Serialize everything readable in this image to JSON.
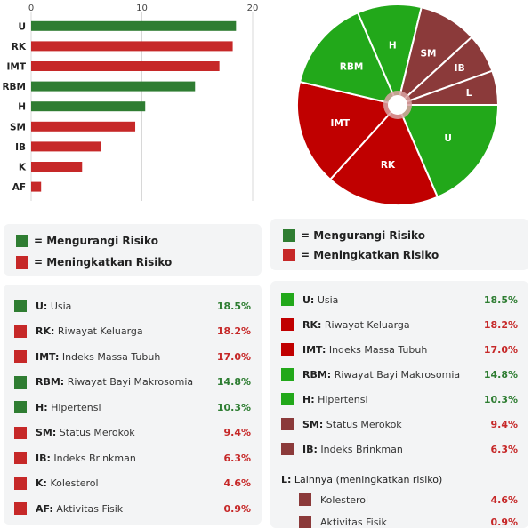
{
  "colors": {
    "reduce_dark": "#2f7d32",
    "increase_red": "#c62828",
    "reduce_bright": "#22a81a",
    "increase_deep": "#c00000",
    "other_maroon": "#8b3a3a",
    "reduce_text": "#2e7d32",
    "increase_text": "#c62828"
  },
  "chart_data": [
    {
      "type": "bar",
      "orientation": "horizontal",
      "categories": [
        "U",
        "RK",
        "IMT",
        "RBM",
        "H",
        "SM",
        "IB",
        "K",
        "AF"
      ],
      "values": [
        18.5,
        18.2,
        17.0,
        14.8,
        10.3,
        9.4,
        6.3,
        4.6,
        0.9
      ],
      "effect": [
        "reduce",
        "increase",
        "increase",
        "reduce",
        "reduce",
        "increase",
        "increase",
        "increase",
        "increase"
      ],
      "xticks": [
        "0",
        "10",
        "20"
      ],
      "xlim": [
        0,
        20
      ],
      "grid": true,
      "title": "",
      "xlabel": "",
      "ylabel": ""
    },
    {
      "type": "pie",
      "style": "donut-with-small-hole",
      "slices": [
        {
          "label": "U",
          "value": 18.5,
          "color": "bright_green"
        },
        {
          "label": "RK",
          "value": 18.2,
          "color": "deep_red"
        },
        {
          "label": "IMT",
          "value": 17.0,
          "color": "deep_red"
        },
        {
          "label": "RBM",
          "value": 14.8,
          "color": "bright_green"
        },
        {
          "label": "H",
          "value": 10.3,
          "color": "bright_green"
        },
        {
          "label": "SM",
          "value": 9.4,
          "color": "maroon"
        },
        {
          "label": "IB",
          "value": 6.3,
          "color": "maroon"
        },
        {
          "label": "L",
          "value": 5.5,
          "color": "maroon"
        }
      ]
    }
  ],
  "left_legend": [
    {
      "label": "= Mengurangi Risiko",
      "effect": "reduce"
    },
    {
      "label": "= Meningkatkan Risiko",
      "effect": "increase"
    }
  ],
  "right_legend": [
    {
      "label": "= Mengurangi Risiko",
      "effect": "reduce"
    },
    {
      "label": "= Meningkatkan Risiko",
      "effect": "increase"
    }
  ],
  "left_table": [
    {
      "abbr": "U:",
      "label": "Usia",
      "pct": "18.5%",
      "effect": "reduce"
    },
    {
      "abbr": "RK:",
      "label": "Riwayat Keluarga",
      "pct": "18.2%",
      "effect": "increase"
    },
    {
      "abbr": "IMT:",
      "label": "Indeks Massa Tubuh",
      "pct": "17.0%",
      "effect": "increase"
    },
    {
      "abbr": "RBM:",
      "label": "Riwayat Bayi Makrosomia",
      "pct": "14.8%",
      "effect": "reduce"
    },
    {
      "abbr": "H:",
      "label": "Hipertensi",
      "pct": "10.3%",
      "effect": "reduce"
    },
    {
      "abbr": "SM:",
      "label": "Status Merokok",
      "pct": "9.4%",
      "effect": "increase"
    },
    {
      "abbr": "IB:",
      "label": "Indeks Brinkman",
      "pct": "6.3%",
      "effect": "increase"
    },
    {
      "abbr": "K:",
      "label": "Kolesterol",
      "pct": "4.6%",
      "effect": "increase"
    },
    {
      "abbr": "AF:",
      "label": "Aktivitas Fisik",
      "pct": "0.9%",
      "effect": "increase"
    }
  ],
  "right_table": [
    {
      "abbr": "U:",
      "label": "Usia",
      "pct": "18.5%",
      "effect": "reduce",
      "swatch": "bright_green"
    },
    {
      "abbr": "RK:",
      "label": "Riwayat Keluarga",
      "pct": "18.2%",
      "effect": "increase",
      "swatch": "deep_red"
    },
    {
      "abbr": "IMT:",
      "label": "Indeks Massa Tubuh",
      "pct": "17.0%",
      "effect": "increase",
      "swatch": "deep_red"
    },
    {
      "abbr": "RBM:",
      "label": "Riwayat Bayi Makrosomia",
      "pct": "14.8%",
      "effect": "reduce",
      "swatch": "bright_green"
    },
    {
      "abbr": "H:",
      "label": "Hipertensi",
      "pct": "10.3%",
      "effect": "reduce",
      "swatch": "bright_green"
    },
    {
      "abbr": "SM:",
      "label": "Status Merokok",
      "pct": "9.4%",
      "effect": "increase",
      "swatch": "maroon"
    },
    {
      "abbr": "IB:",
      "label": "Indeks Brinkman",
      "pct": "6.3%",
      "effect": "increase",
      "swatch": "maroon"
    }
  ],
  "right_note": {
    "abbr": "L:",
    "text": "Lainnya (meningkatkan risiko)"
  },
  "right_sub": [
    {
      "label": "Kolesterol",
      "pct": "4.6%",
      "effect": "increase",
      "swatch": "maroon"
    },
    {
      "label": "Aktivitas Fisik",
      "pct": "0.9%",
      "effect": "increase",
      "swatch": "maroon"
    }
  ]
}
